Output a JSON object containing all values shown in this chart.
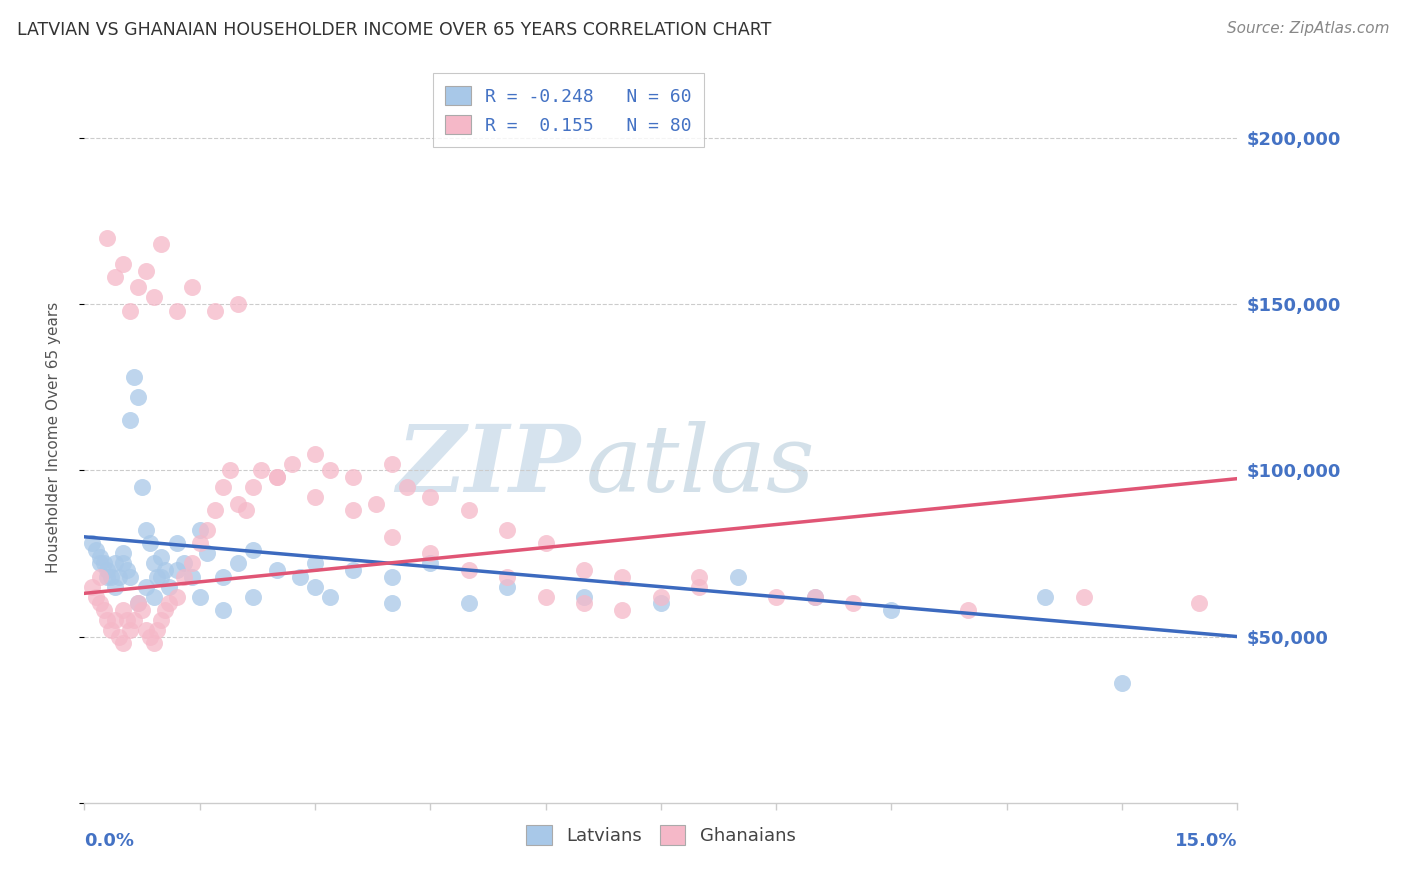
{
  "title": "LATVIAN VS GHANAIAN HOUSEHOLDER INCOME OVER 65 YEARS CORRELATION CHART",
  "source": "Source: ZipAtlas.com",
  "ylabel": "Householder Income Over 65 years",
  "watermark_zip": "ZIP",
  "watermark_atlas": "atlas",
  "xlim": [
    0.0,
    15.0
  ],
  "ylim": [
    0,
    220000
  ],
  "yticks": [
    0,
    50000,
    100000,
    150000,
    200000
  ],
  "ytick_labels": [
    "",
    "$50,000",
    "$100,000",
    "$150,000",
    "$200,000"
  ],
  "legend_r1": "R = -0.248",
  "legend_n1": "N = 60",
  "legend_r2": "R =  0.155",
  "legend_n2": "N = 80",
  "blue_scatter_color": "#a8c8e8",
  "pink_scatter_color": "#f5b8c8",
  "blue_line_color": "#3c6abf",
  "pink_line_color": "#e05575",
  "axis_label_color": "#4472c4",
  "title_color": "#333333",
  "source_color": "#888888",
  "latvians_x": [
    0.1,
    0.15,
    0.2,
    0.25,
    0.3,
    0.35,
    0.4,
    0.45,
    0.5,
    0.55,
    0.6,
    0.65,
    0.7,
    0.75,
    0.8,
    0.85,
    0.9,
    0.95,
    1.0,
    1.05,
    1.1,
    1.2,
    1.3,
    1.4,
    1.5,
    1.6,
    1.8,
    2.0,
    2.2,
    2.5,
    2.8,
    3.0,
    3.2,
    3.5,
    4.0,
    4.5,
    5.0,
    5.5,
    6.5,
    7.5,
    8.5,
    9.5,
    10.5,
    12.5,
    13.5,
    0.2,
    0.3,
    0.4,
    0.5,
    0.6,
    0.7,
    0.8,
    0.9,
    1.0,
    1.2,
    1.5,
    1.8,
    2.2,
    3.0,
    4.0
  ],
  "latvians_y": [
    78000,
    76000,
    74000,
    72000,
    70000,
    68000,
    72000,
    68000,
    75000,
    70000,
    115000,
    128000,
    122000,
    95000,
    82000,
    78000,
    72000,
    68000,
    74000,
    70000,
    65000,
    78000,
    72000,
    68000,
    82000,
    75000,
    68000,
    72000,
    76000,
    70000,
    68000,
    72000,
    62000,
    70000,
    68000,
    72000,
    60000,
    65000,
    62000,
    60000,
    68000,
    62000,
    58000,
    62000,
    36000,
    72000,
    68000,
    65000,
    72000,
    68000,
    60000,
    65000,
    62000,
    68000,
    70000,
    62000,
    58000,
    62000,
    65000,
    60000
  ],
  "ghanaians_x": [
    0.1,
    0.15,
    0.2,
    0.25,
    0.3,
    0.35,
    0.4,
    0.45,
    0.5,
    0.5,
    0.55,
    0.6,
    0.65,
    0.7,
    0.75,
    0.8,
    0.85,
    0.9,
    0.95,
    1.0,
    1.05,
    1.1,
    1.2,
    1.3,
    1.4,
    1.5,
    1.6,
    1.7,
    1.8,
    1.9,
    2.0,
    2.1,
    2.2,
    2.3,
    2.5,
    2.7,
    3.0,
    3.2,
    3.5,
    3.8,
    4.0,
    4.2,
    4.5,
    5.0,
    5.5,
    6.0,
    6.5,
    7.0,
    8.0,
    9.5,
    0.3,
    0.4,
    0.5,
    0.6,
    0.7,
    0.8,
    0.9,
    1.0,
    1.2,
    1.4,
    1.7,
    2.0,
    2.5,
    3.0,
    3.5,
    4.0,
    4.5,
    5.0,
    5.5,
    6.0,
    6.5,
    7.0,
    7.5,
    8.0,
    9.0,
    10.0,
    11.5,
    13.0,
    14.5,
    0.2
  ],
  "ghanaians_y": [
    65000,
    62000,
    60000,
    58000,
    55000,
    52000,
    55000,
    50000,
    58000,
    48000,
    55000,
    52000,
    55000,
    60000,
    58000,
    52000,
    50000,
    48000,
    52000,
    55000,
    58000,
    60000,
    62000,
    68000,
    72000,
    78000,
    82000,
    88000,
    95000,
    100000,
    90000,
    88000,
    95000,
    100000,
    98000,
    102000,
    105000,
    100000,
    98000,
    90000,
    102000,
    95000,
    92000,
    88000,
    82000,
    78000,
    70000,
    68000,
    65000,
    62000,
    170000,
    158000,
    162000,
    148000,
    155000,
    160000,
    152000,
    168000,
    148000,
    155000,
    148000,
    150000,
    98000,
    92000,
    88000,
    80000,
    75000,
    70000,
    68000,
    62000,
    60000,
    58000,
    62000,
    68000,
    62000,
    60000,
    58000,
    62000,
    60000,
    68000
  ]
}
